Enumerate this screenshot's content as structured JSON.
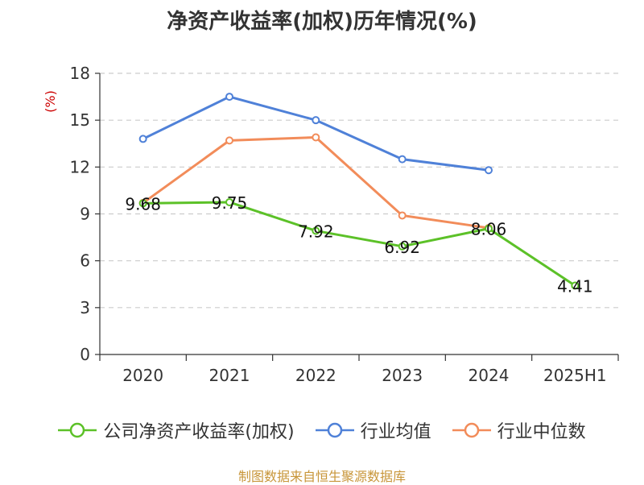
{
  "title": "净资产收益率(加权)历年情况(%)",
  "source": "制图数据来自恒生聚源数据库",
  "chart_data": {
    "type": "line",
    "categories": [
      "2020",
      "2021",
      "2022",
      "2023",
      "2024",
      "2025H1"
    ],
    "ylabel": "(%)",
    "ylim": [
      0,
      18
    ],
    "yticks": [
      0,
      3,
      6,
      9,
      12,
      15,
      18
    ],
    "grid": true,
    "legend_position": "bottom",
    "series": [
      {
        "name": "公司净资产收益率(加权)",
        "color": "#5cc128",
        "values": [
          9.68,
          9.75,
          7.92,
          6.92,
          8.06,
          4.41
        ],
        "labels": [
          "9.68",
          "9.75",
          "7.92",
          "6.92",
          "8.06",
          "4.41"
        ]
      },
      {
        "name": "行业均值",
        "color": "#4f81d8",
        "values": [
          13.8,
          16.5,
          15.0,
          12.5,
          11.8,
          null
        ]
      },
      {
        "name": "行业中位数",
        "color": "#f28c5a",
        "values": [
          9.7,
          13.7,
          13.9,
          8.9,
          8.1,
          null
        ]
      }
    ]
  }
}
